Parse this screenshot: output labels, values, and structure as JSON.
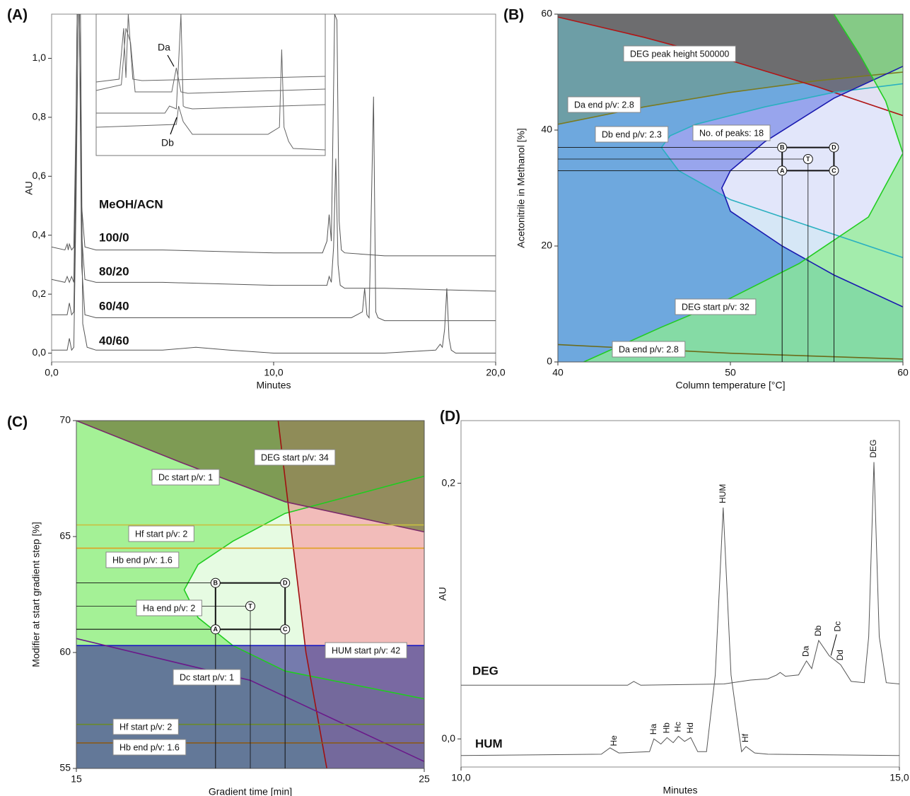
{
  "chart_data": [
    {
      "type": "line",
      "panel_label": "(A)",
      "x_label": "Minutes",
      "y_label": "AU",
      "legend_title": "MeOH/ACN",
      "xlim": [
        0,
        20
      ],
      "ylim": [
        -0.03,
        1.15
      ],
      "xticks": [
        {
          "value": 0,
          "label": "0,0"
        },
        {
          "value": 10,
          "label": "10,0"
        },
        {
          "value": 20,
          "label": "20,0"
        }
      ],
      "yticks": [
        {
          "value": 0,
          "label": "0,0"
        },
        {
          "value": 0.2,
          "label": "0,2"
        },
        {
          "value": 0.4,
          "label": "0,4"
        },
        {
          "value": 0.6,
          "label": "0,6"
        },
        {
          "value": 0.8,
          "label": "0,8"
        },
        {
          "value": 1,
          "label": "1,0"
        }
      ],
      "series": [
        {
          "name": "100/0",
          "color": "#555555",
          "x": [
            0,
            0.6,
            0.7,
            0.75,
            0.8,
            0.9,
            1.0,
            1.1,
            1.15,
            1.25,
            1.35,
            1.5,
            2,
            5,
            10,
            12.2,
            12.4,
            12.5,
            12.6,
            12.7,
            12.75,
            12.85,
            12.95,
            13.05,
            13.2,
            15,
            20
          ],
          "values": [
            0.36,
            0.35,
            0.37,
            0.35,
            0.37,
            0.35,
            0.36,
            0.8,
            1.15,
            1.15,
            0.5,
            0.36,
            0.35,
            0.35,
            0.34,
            0.34,
            0.38,
            0.47,
            0.38,
            0.9,
            1.15,
            1.13,
            0.45,
            0.35,
            0.34,
            0.33,
            0.33
          ]
        },
        {
          "name": "80/20",
          "color": "#555555",
          "x": [
            0,
            0.6,
            0.7,
            0.8,
            0.9,
            1.0,
            1.1,
            1.15,
            1.25,
            1.35,
            1.5,
            2,
            5,
            10,
            11.8,
            12.4,
            12.5,
            12.6,
            12.7,
            12.8,
            12.9,
            13.0,
            13.2,
            15,
            20
          ],
          "values": [
            0.25,
            0.24,
            0.26,
            0.24,
            0.26,
            0.24,
            0.7,
            1.15,
            1.15,
            0.4,
            0.25,
            0.24,
            0.24,
            0.23,
            0.23,
            0.23,
            0.26,
            0.24,
            0.36,
            0.66,
            0.3,
            0.23,
            0.22,
            0.22,
            0.21
          ]
        },
        {
          "name": "60/40",
          "color": "#555555",
          "x": [
            0,
            0.7,
            0.8,
            0.9,
            1.0,
            1.1,
            1.15,
            1.25,
            1.35,
            1.5,
            2,
            5,
            10,
            13.5,
            14.0,
            14.1,
            14.2,
            14.3,
            14.4,
            14.5,
            14.6,
            14.7,
            15,
            20
          ],
          "values": [
            0.13,
            0.13,
            0.17,
            0.13,
            0.14,
            0.6,
            1.15,
            1.15,
            0.3,
            0.13,
            0.12,
            0.12,
            0.12,
            0.12,
            0.14,
            0.22,
            0.13,
            0.12,
            0.5,
            0.87,
            0.14,
            0.12,
            0.11,
            0.11
          ]
        },
        {
          "name": "40/60",
          "color": "#555555",
          "x": [
            0,
            0.7,
            0.8,
            0.9,
            1.0,
            1.1,
            1.2,
            1.3,
            1.4,
            1.6,
            2,
            5,
            6.5,
            8,
            10,
            15,
            17.3,
            17.5,
            17.6,
            17.7,
            17.8,
            17.9,
            18.0,
            18.2,
            20
          ],
          "values": [
            0.01,
            0.01,
            0.05,
            0.01,
            0.02,
            0.5,
            1.15,
            1.15,
            0.1,
            0.02,
            0.01,
            0.01,
            0.02,
            0.01,
            0,
            0,
            0.01,
            0.03,
            0.02,
            0.08,
            0.22,
            0.05,
            0.01,
            0,
            0
          ]
        }
      ],
      "inset": {
        "xlim": [
          0,
          10
        ],
        "ylim": [
          0,
          1
        ],
        "annotations": [
          "Da",
          "Db"
        ],
        "series": [
          {
            "color": "#666666",
            "x": [
              0,
              1.0,
              1.2,
              1.3,
              1.4,
              1.6,
              2.0,
              10
            ],
            "values": [
              0.52,
              0.54,
              0.9,
              0.55,
              1.0,
              0.54,
              0.53,
              0.56
            ]
          },
          {
            "color": "#666666",
            "x": [
              0,
              1.1,
              1.3,
              1.5,
              1.7,
              3.3,
              3.5,
              3.7,
              4.0,
              10
            ],
            "values": [
              0.46,
              0.5,
              0.9,
              0.8,
              0.45,
              0.45,
              0.62,
              0.45,
              0.44,
              0.47
            ]
          },
          {
            "color": "#666666",
            "x": [
              0,
              3.0,
              3.2,
              3.5,
              3.7,
              3.8,
              3.9,
              4.2,
              10
            ],
            "values": [
              0.3,
              0.3,
              0.35,
              0.33,
              1.0,
              0.35,
              0.34,
              0.33,
              0.36
            ]
          },
          {
            "color": "#666666",
            "x": [
              0,
              3.5,
              3.6,
              3.8,
              4.2,
              7.5,
              8.0,
              8.1,
              8.2,
              8.4,
              8.6,
              10
            ],
            "values": [
              0.2,
              0.22,
              0.35,
              0.24,
              0.15,
              0.15,
              0.2,
              0.75,
              0.2,
              0.1,
              0.05,
              0.04
            ]
          }
        ]
      }
    },
    {
      "type": "contour",
      "panel_label": "(B)",
      "x_label": "Column temperature [°C]",
      "y_label": "Acetonitrile in Methanol [%]",
      "xlim": [
        40,
        60
      ],
      "ylim": [
        0,
        60
      ],
      "xticks": [
        40,
        50,
        60
      ],
      "yticks": [
        0,
        20,
        40,
        60
      ],
      "background": "#6ea8de",
      "series": [
        {
          "name": "Da end p/v: 2.8",
          "color": "#7a7a20",
          "fill": "#6e9a90",
          "fill_to": "top",
          "x": [
            40,
            45,
            50,
            55,
            60
          ],
          "values": [
            41,
            44,
            46.5,
            48.5,
            50
          ]
        },
        {
          "name": "DEG peak height  500000",
          "color": "#b01515",
          "fill": "#6e5a5a",
          "fill_to": "top",
          "x": [
            40,
            45,
            50,
            55,
            60
          ],
          "values": [
            59.5,
            56,
            52,
            47.5,
            42.5
          ]
        },
        {
          "name": "Db end p/v: 2.3",
          "color": "#2ab0c0",
          "fill": "#a9a3f2",
          "fill_to": "right",
          "x": [
            60,
            56,
            52,
            48,
            46.5,
            46,
            47,
            50,
            55,
            60
          ],
          "values": [
            48,
            46.5,
            44,
            41,
            39,
            37,
            33,
            28,
            23,
            18
          ]
        },
        {
          "name": "No. of peaks: 18",
          "color": "#1a1ab0",
          "fill": "#ffffff",
          "fill_to": "right",
          "x": [
            60,
            56,
            52,
            50,
            49.5,
            50,
            53,
            56,
            60
          ],
          "values": [
            51,
            45.5,
            38,
            33,
            30,
            26,
            20,
            15,
            9.5
          ]
        },
        {
          "name": "DEG start p/v: 32",
          "color": "#22cc22",
          "fill": "#8fee8f",
          "fill_to": "right",
          "x": [
            41.5,
            46,
            50,
            54,
            58,
            60,
            59,
            57.5,
            56
          ],
          "values": [
            0,
            6,
            11,
            17,
            25,
            36,
            45,
            53,
            60
          ]
        },
        {
          "name": "Da end p/v: 2.8",
          "color": "#6b6b1a",
          "x": [
            40,
            50,
            60
          ],
          "values": [
            3,
            1.5,
            0.5
          ]
        }
      ],
      "points": {
        "labels": [
          "A",
          "B",
          "C",
          "D",
          "T"
        ],
        "x": [
          53,
          53,
          56,
          56,
          54.5
        ],
        "y": [
          33,
          37,
          33,
          37,
          35
        ]
      }
    },
    {
      "type": "contour",
      "panel_label": "(C)",
      "x_label": "Gradient time [min]",
      "y_label": "Modifier at start gradient step [%]",
      "xlim": [
        15,
        25
      ],
      "ylim": [
        55,
        70
      ],
      "xticks": [
        15,
        25
      ],
      "yticks": [
        55,
        60,
        65,
        70
      ],
      "background": "#a4f196",
      "series": [
        {
          "name": "Ha end p/v: 2",
          "color": "#20cc20",
          "fill": "#ffffff",
          "fill_to": "right",
          "x": [
            25,
            23,
            21,
            19.5,
            18.5,
            18.1,
            18.5,
            19.5,
            21,
            23,
            25
          ],
          "values": [
            67.6,
            66.8,
            66,
            64.8,
            63.8,
            62.7,
            61.5,
            60.3,
            59.2,
            58.6,
            58
          ]
        },
        {
          "name": "DEG start p/v: 34",
          "color": "#a01010",
          "fill": "#f7a3aa",
          "fill_to": "right",
          "x": [
            20.8,
            21.2,
            21.6,
            22.2
          ],
          "values": [
            70,
            65,
            60,
            55
          ]
        },
        {
          "name": "Dc start p/v: 1",
          "color": "#7a2a6a",
          "fill": "#6f7a3a",
          "fill_to": "top",
          "x": [
            15,
            18,
            21,
            25
          ],
          "values": [
            70,
            68.2,
            66.5,
            65.2
          ]
        },
        {
          "name": "Hf start p/v: 2",
          "color": "#c8c040",
          "x": [
            15,
            25
          ],
          "values": [
            65.5,
            65.5
          ]
        },
        {
          "name": "Hb end p/v: 1.6",
          "color": "#e0a020",
          "x": [
            15,
            25
          ],
          "values": [
            64.5,
            64.5
          ]
        },
        {
          "name": "HUM start p/v: 42",
          "color": "#1a1ac0",
          "fill": "#4a4a98",
          "fill_to": "bottom",
          "x": [
            15,
            25
          ],
          "values": [
            60.3,
            60.3
          ]
        },
        {
          "name": "Dc start p/v: 1",
          "color": "#6a1a8a",
          "x": [
            15,
            20,
            25
          ],
          "values": [
            60.6,
            58.8,
            55.3
          ]
        },
        {
          "name": "Hf start p/v: 2",
          "color": "#6a8a2a",
          "x": [
            15,
            25
          ],
          "values": [
            56.9,
            56.9
          ]
        },
        {
          "name": "Hb end p/v: 1.6",
          "color": "#8a5a1a",
          "x": [
            15,
            25
          ],
          "values": [
            56.1,
            56.1
          ]
        }
      ],
      "points": {
        "labels": [
          "A",
          "B",
          "C",
          "D",
          "T"
        ],
        "x": [
          19,
          19,
          21,
          21,
          20
        ],
        "y": [
          61,
          63,
          61,
          63,
          62
        ]
      }
    },
    {
      "type": "line",
      "panel_label": "(D)",
      "x_label": "Minutes",
      "y_label": "AU",
      "xlim": [
        10,
        15
      ],
      "ylim": [
        -0.022,
        0.249
      ],
      "xticks": [
        {
          "value": 10,
          "label": "10,0"
        },
        {
          "value": 15,
          "label": "15,0"
        }
      ],
      "yticks": [
        {
          "value": 0,
          "label": "0,0"
        },
        {
          "value": 0.2,
          "label": "0,2"
        }
      ],
      "series": [
        {
          "name": "DEG",
          "color": "#555555",
          "x": [
            10,
            11.9,
            11.97,
            12.05,
            13.0,
            13.3,
            13.5,
            13.6,
            13.64,
            13.7,
            13.85,
            13.94,
            14.0,
            14.08,
            14.2,
            14.33,
            14.45,
            14.6,
            14.65,
            14.71,
            14.77,
            14.85,
            15
          ],
          "values": [
            0.042,
            0.042,
            0.045,
            0.042,
            0.043,
            0.046,
            0.047,
            0.05,
            0.052,
            0.049,
            0.05,
            0.061,
            0.055,
            0.077,
            0.065,
            0.058,
            0.045,
            0.044,
            0.08,
            0.2166,
            0.08,
            0.044,
            0.043
          ],
          "peaks": [
            "Da",
            "Db",
            "Dc",
            "Dd",
            "DEG"
          ],
          "peak_x": [
            13.94,
            14.08,
            14.3,
            14.33,
            14.71
          ]
        },
        {
          "name": "HUM",
          "color": "#555555",
          "x": [
            10,
            11.6,
            11.7,
            11.8,
            12.15,
            12.2,
            12.28,
            12.35,
            12.42,
            12.48,
            12.55,
            12.62,
            12.7,
            12.8,
            12.9,
            12.99,
            13.08,
            13.2,
            13.25,
            13.35,
            13.5,
            15
          ],
          "values": [
            -0.013,
            -0.012,
            -0.007,
            -0.011,
            -0.01,
            0.0,
            -0.004,
            0.001,
            -0.003,
            0.002,
            -0.002,
            0.001,
            -0.01,
            -0.01,
            0.05,
            0.181,
            0.05,
            -0.01,
            -0.006,
            -0.011,
            -0.012,
            -0.013
          ],
          "peaks": [
            "He",
            "Ha",
            "Hb",
            "Hc",
            "Hd",
            "HUM",
            "Hf"
          ],
          "peak_x": [
            11.75,
            12.2,
            12.35,
            12.48,
            12.62,
            12.99,
            13.25
          ]
        }
      ]
    }
  ]
}
